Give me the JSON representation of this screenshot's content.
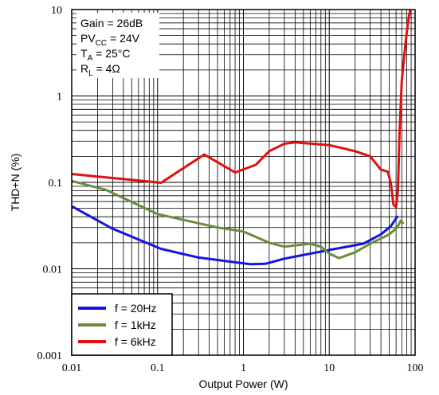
{
  "chart_data": {
    "type": "line",
    "xlabel": "Output Power (W)",
    "ylabel": "THD+N (%)",
    "x_scale": "log",
    "y_scale": "log",
    "xlim": [
      0.01,
      100
    ],
    "ylim": [
      0.001,
      10
    ],
    "x_ticks": [
      "0.01",
      "0.1",
      "1",
      "10",
      "100"
    ],
    "y_ticks": [
      "0.001",
      "0.01",
      "0.1",
      "1",
      "10"
    ],
    "grid": true,
    "conditions": [
      {
        "main": "Gain = 26dB",
        "sub": "",
        "rest": ""
      },
      {
        "main": "PV",
        "sub": "CC",
        "rest": " = 24V"
      },
      {
        "main": "T",
        "sub": "A",
        "rest": " = 25°C"
      },
      {
        "main": "R",
        "sub": "L",
        "rest": " = 4Ω"
      }
    ],
    "legend_position": "bottom-left",
    "series": [
      {
        "name": "f = 20Hz",
        "color": "#1515e0",
        "points": [
          [
            0.01,
            0.053
          ],
          [
            0.03,
            0.029
          ],
          [
            0.11,
            0.017
          ],
          [
            0.3,
            0.0135
          ],
          [
            1.2,
            0.0113
          ],
          [
            1.8,
            0.0114
          ],
          [
            3,
            0.0131
          ],
          [
            10,
            0.0165
          ],
          [
            25,
            0.0195
          ],
          [
            40,
            0.025
          ],
          [
            52,
            0.031
          ],
          [
            62,
            0.04
          ]
        ]
      },
      {
        "name": "f = 1kHz",
        "color": "#6a8c3a",
        "points": [
          [
            0.01,
            0.104
          ],
          [
            0.025,
            0.082
          ],
          [
            0.1,
            0.043
          ],
          [
            0.5,
            0.03
          ],
          [
            1,
            0.027
          ],
          [
            2,
            0.02
          ],
          [
            3,
            0.018
          ],
          [
            6,
            0.0195
          ],
          [
            8,
            0.018
          ],
          [
            10,
            0.015
          ],
          [
            13,
            0.0133
          ],
          [
            20,
            0.0155
          ],
          [
            30,
            0.0195
          ],
          [
            50,
            0.025
          ],
          [
            62,
            0.03
          ],
          [
            68,
            0.036
          ],
          [
            72,
            0.034
          ]
        ]
      },
      {
        "name": "f = 6kHz",
        "color": "#e01010",
        "points": [
          [
            0.01,
            0.125
          ],
          [
            0.11,
            0.099
          ],
          [
            0.35,
            0.21
          ],
          [
            0.8,
            0.13
          ],
          [
            1.4,
            0.16
          ],
          [
            2,
            0.23
          ],
          [
            3,
            0.28
          ],
          [
            4,
            0.29
          ],
          [
            10,
            0.27
          ],
          [
            20,
            0.23
          ],
          [
            30,
            0.2
          ],
          [
            40,
            0.14
          ],
          [
            48,
            0.133
          ],
          [
            52,
            0.1
          ],
          [
            56,
            0.055
          ],
          [
            60,
            0.052
          ],
          [
            63,
            0.08
          ],
          [
            66,
            0.4
          ],
          [
            70,
            1.5
          ],
          [
            75,
            3
          ],
          [
            80,
            5.5
          ],
          [
            85,
            8.5
          ],
          [
            88,
            10
          ]
        ]
      }
    ]
  }
}
